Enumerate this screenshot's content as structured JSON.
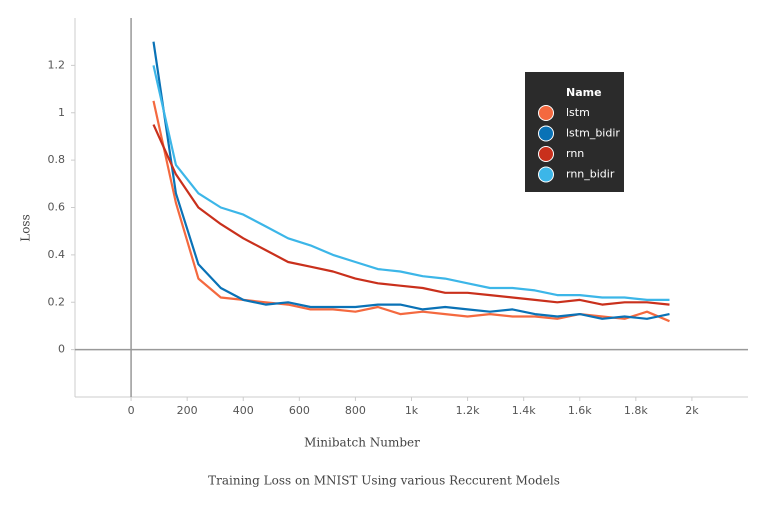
{
  "chart_data": {
    "type": "line",
    "title": "Training Loss on MNIST Using various Reccurent Models",
    "x_label": "Minibatch Number",
    "y_label": "Loss",
    "legend_title": "Name",
    "x": [
      80,
      160,
      240,
      320,
      400,
      480,
      560,
      640,
      720,
      800,
      880,
      960,
      1040,
      1120,
      1200,
      1280,
      1360,
      1440,
      1520,
      1600,
      1680,
      1760,
      1840,
      1920
    ],
    "series": [
      {
        "name": "lstm",
        "color": "#f4693f",
        "values": [
          1.05,
          0.62,
          0.3,
          0.22,
          0.21,
          0.2,
          0.19,
          0.17,
          0.17,
          0.16,
          0.18,
          0.15,
          0.16,
          0.15,
          0.14,
          0.15,
          0.14,
          0.14,
          0.13,
          0.15,
          0.14,
          0.13,
          0.16,
          0.12
        ]
      },
      {
        "name": "lstm_bidir",
        "color": "#0a72b6",
        "values": [
          1.3,
          0.66,
          0.36,
          0.26,
          0.21,
          0.19,
          0.2,
          0.18,
          0.18,
          0.18,
          0.19,
          0.19,
          0.17,
          0.18,
          0.17,
          0.16,
          0.17,
          0.15,
          0.14,
          0.15,
          0.13,
          0.14,
          0.13,
          0.15
        ]
      },
      {
        "name": "rnn",
        "color": "#c9301c",
        "values": [
          0.95,
          0.74,
          0.6,
          0.53,
          0.47,
          0.42,
          0.37,
          0.35,
          0.33,
          0.3,
          0.28,
          0.27,
          0.26,
          0.24,
          0.24,
          0.23,
          0.22,
          0.21,
          0.2,
          0.21,
          0.19,
          0.2,
          0.2,
          0.19
        ]
      },
      {
        "name": "rnn_bidir",
        "color": "#3cb6e8",
        "values": [
          1.2,
          0.78,
          0.66,
          0.6,
          0.57,
          0.52,
          0.47,
          0.44,
          0.4,
          0.37,
          0.34,
          0.33,
          0.31,
          0.3,
          0.28,
          0.26,
          0.26,
          0.25,
          0.23,
          0.23,
          0.22,
          0.22,
          0.21,
          0.21
        ]
      }
    ],
    "xlim": [
      -200,
      2200
    ],
    "ylim": [
      -0.2,
      1.4
    ],
    "xticks": [
      0,
      200,
      400,
      600,
      800,
      {
        "value": 1000,
        "label": "1k"
      },
      {
        "value": 1200,
        "label": "1.2k"
      },
      {
        "value": 1400,
        "label": "1.4k"
      },
      {
        "value": 1600,
        "label": "1.6k"
      },
      {
        "value": 1800,
        "label": "1.8k"
      },
      {
        "value": 2000,
        "label": "2k"
      }
    ],
    "yticks": [
      0,
      0.2,
      0.4,
      0.6,
      0.8,
      1,
      1.2
    ],
    "grid": false
  }
}
